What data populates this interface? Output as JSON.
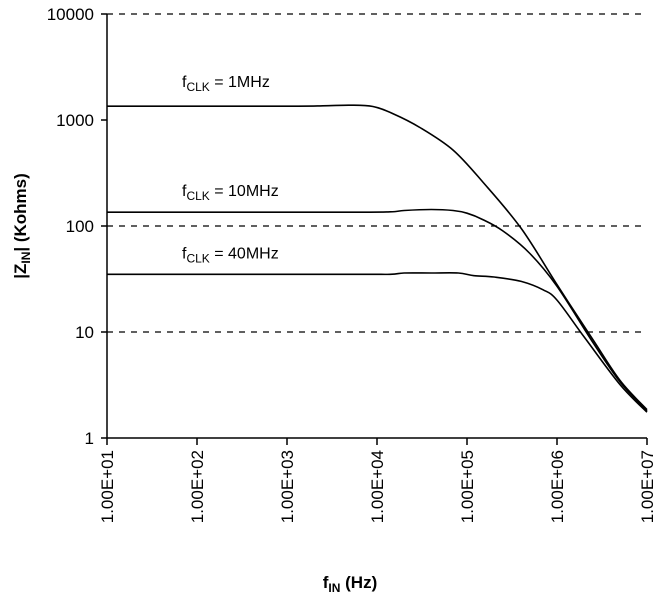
{
  "chart_data": {
    "type": "line",
    "title": "",
    "xlabel": {
      "main": "f",
      "sub": "IN",
      "unit": " (Hz)"
    },
    "ylabel": {
      "pre": "|Z",
      "sub": "IN",
      "post": "| (Kohms)"
    },
    "xscale": "log",
    "yscale": "log",
    "xlim": [
      10,
      10000000
    ],
    "ylim": [
      1,
      10000
    ],
    "x_ticks": [
      {
        "value": 10,
        "label": "1.00E+01"
      },
      {
        "value": 100,
        "label": "1.00E+02"
      },
      {
        "value": 1000,
        "label": "1.00E+03"
      },
      {
        "value": 10000,
        "label": "1.00E+04"
      },
      {
        "value": 100000,
        "label": "1.00E+05"
      },
      {
        "value": 1000000,
        "label": "1.00E+06"
      },
      {
        "value": 10000000,
        "label": "1.00E+07"
      }
    ],
    "y_ticks": [
      {
        "value": 1,
        "label": "1"
      },
      {
        "value": 10,
        "label": "10"
      },
      {
        "value": 100,
        "label": "100"
      },
      {
        "value": 1000,
        "label": "1000"
      },
      {
        "value": 10000,
        "label": "10000"
      }
    ],
    "gridlines": {
      "axis": "y",
      "style": "dashed",
      "values": [
        10,
        100,
        10000
      ]
    },
    "series": [
      {
        "label": {
          "main": "f",
          "sub": "CLK",
          "post": " = 1MHz"
        },
        "color": "#000000",
        "x": [
          10,
          1000,
          2500,
          5000,
          9000,
          15000,
          30000,
          70000,
          150000,
          400000,
          1000000,
          2500000,
          5000000,
          10000000
        ],
        "y": [
          1350,
          1350,
          1360,
          1380,
          1340,
          1150,
          850,
          520,
          260,
          95,
          28,
          8.5,
          3.5,
          1.85
        ]
      },
      {
        "label": {
          "main": "f",
          "sub": "CLK",
          "post": " = 10MHz"
        },
        "color": "#000000",
        "x": [
          10,
          5000,
          14000,
          20000,
          40000,
          70000,
          100000,
          150000,
          250000,
          500000,
          1000000,
          2500000,
          5000000,
          10000000
        ],
        "y": [
          135,
          135,
          136,
          140,
          143,
          140,
          132,
          115,
          90,
          55,
          27,
          8,
          3.4,
          1.8
        ]
      },
      {
        "label": {
          "main": "f",
          "sub": "CLK",
          "post": " = 40MHz"
        },
        "color": "#000000",
        "x": [
          10,
          5000,
          14000,
          20000,
          40000,
          80000,
          120000,
          200000,
          400000,
          700000,
          1000000,
          2000000,
          5000000,
          10000000
        ],
        "y": [
          35,
          35,
          35,
          36,
          36,
          36,
          34,
          33,
          30,
          25,
          20,
          9,
          3.2,
          1.75
        ]
      }
    ]
  }
}
